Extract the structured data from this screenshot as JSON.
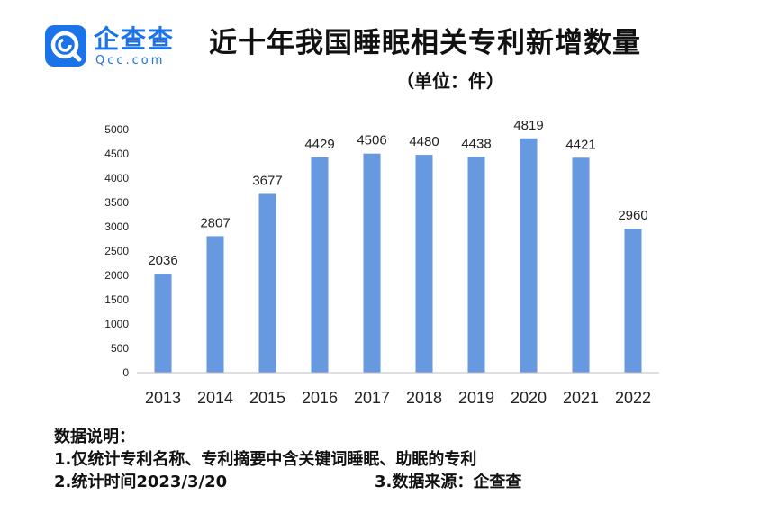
{
  "logo": {
    "name": "企查查",
    "domain": "Qcc.com",
    "brand_color": "#1a73e8"
  },
  "title": "近十年我国睡眠相关专利新增数量",
  "subtitle": "（单位：件）",
  "chart_data": {
    "type": "bar",
    "categories": [
      "2013",
      "2014",
      "2015",
      "2016",
      "2017",
      "2018",
      "2019",
      "2020",
      "2021",
      "2022"
    ],
    "values": [
      2036,
      2807,
      3677,
      4429,
      4506,
      4480,
      4438,
      4819,
      4421,
      2960
    ],
    "ylim": [
      0,
      5000
    ],
    "yticks": [
      0,
      500,
      1000,
      1500,
      2000,
      2500,
      3000,
      3500,
      4000,
      4500,
      5000
    ],
    "bar_color": "#6699e0",
    "grid": false,
    "data_labels": true
  },
  "notes": {
    "heading": "数据说明：",
    "line1": "1.仅统计专利名称、专利摘要中含关键词睡眠、助眠的专利",
    "line2_left": "2.统计时间2023/3/20",
    "line2_right": "3.数据来源：企查查"
  }
}
